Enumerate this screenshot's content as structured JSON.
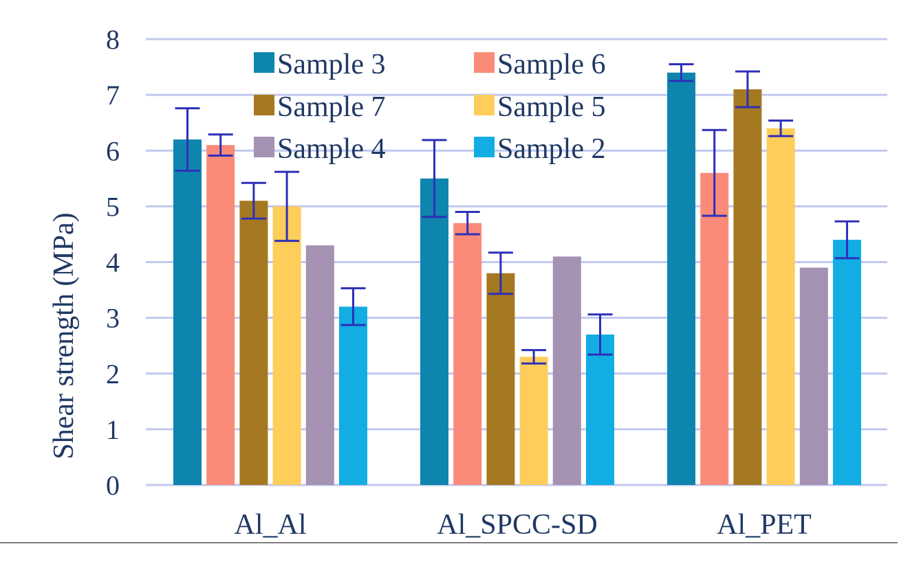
{
  "chart_data": {
    "type": "bar",
    "title": "",
    "xlabel": "",
    "ylabel": "Shear strength (MPa)",
    "ylim": [
      0,
      8
    ],
    "yticks": [
      0,
      1,
      2,
      3,
      4,
      5,
      6,
      7,
      8
    ],
    "grid": true,
    "legend_position": "top-left",
    "categories": [
      "Al_Al",
      "Al_SPCC-SD",
      "Al_PET"
    ],
    "series": [
      {
        "name": "Sample 3",
        "color": "#0e85ae",
        "values": [
          6.2,
          5.5,
          7.4
        ],
        "errors": [
          0.56,
          0.69,
          0.15
        ]
      },
      {
        "name": "Sample 6",
        "color": "#fa8b79",
        "values": [
          6.1,
          4.7,
          5.6
        ],
        "errors": [
          0.19,
          0.2,
          0.77
        ]
      },
      {
        "name": "Sample 7",
        "color": "#a57921",
        "values": [
          5.1,
          3.8,
          7.1
        ],
        "errors": [
          0.32,
          0.37,
          0.32
        ]
      },
      {
        "name": "Sample 5",
        "color": "#fecd5a",
        "values": [
          5.0,
          2.3,
          6.4
        ],
        "errors": [
          0.62,
          0.12,
          0.14
        ]
      },
      {
        "name": "Sample 4",
        "color": "#a591b2",
        "values": [
          4.3,
          4.1,
          3.9
        ],
        "errors": [
          null,
          null,
          null
        ]
      },
      {
        "name": "Sample 2",
        "color": "#12ade3",
        "values": [
          3.2,
          2.7,
          4.4
        ],
        "errors": [
          0.33,
          0.36,
          0.33
        ]
      }
    ],
    "error_bar_color": "#2e2fba",
    "grid_color": "#c0c8ef"
  }
}
